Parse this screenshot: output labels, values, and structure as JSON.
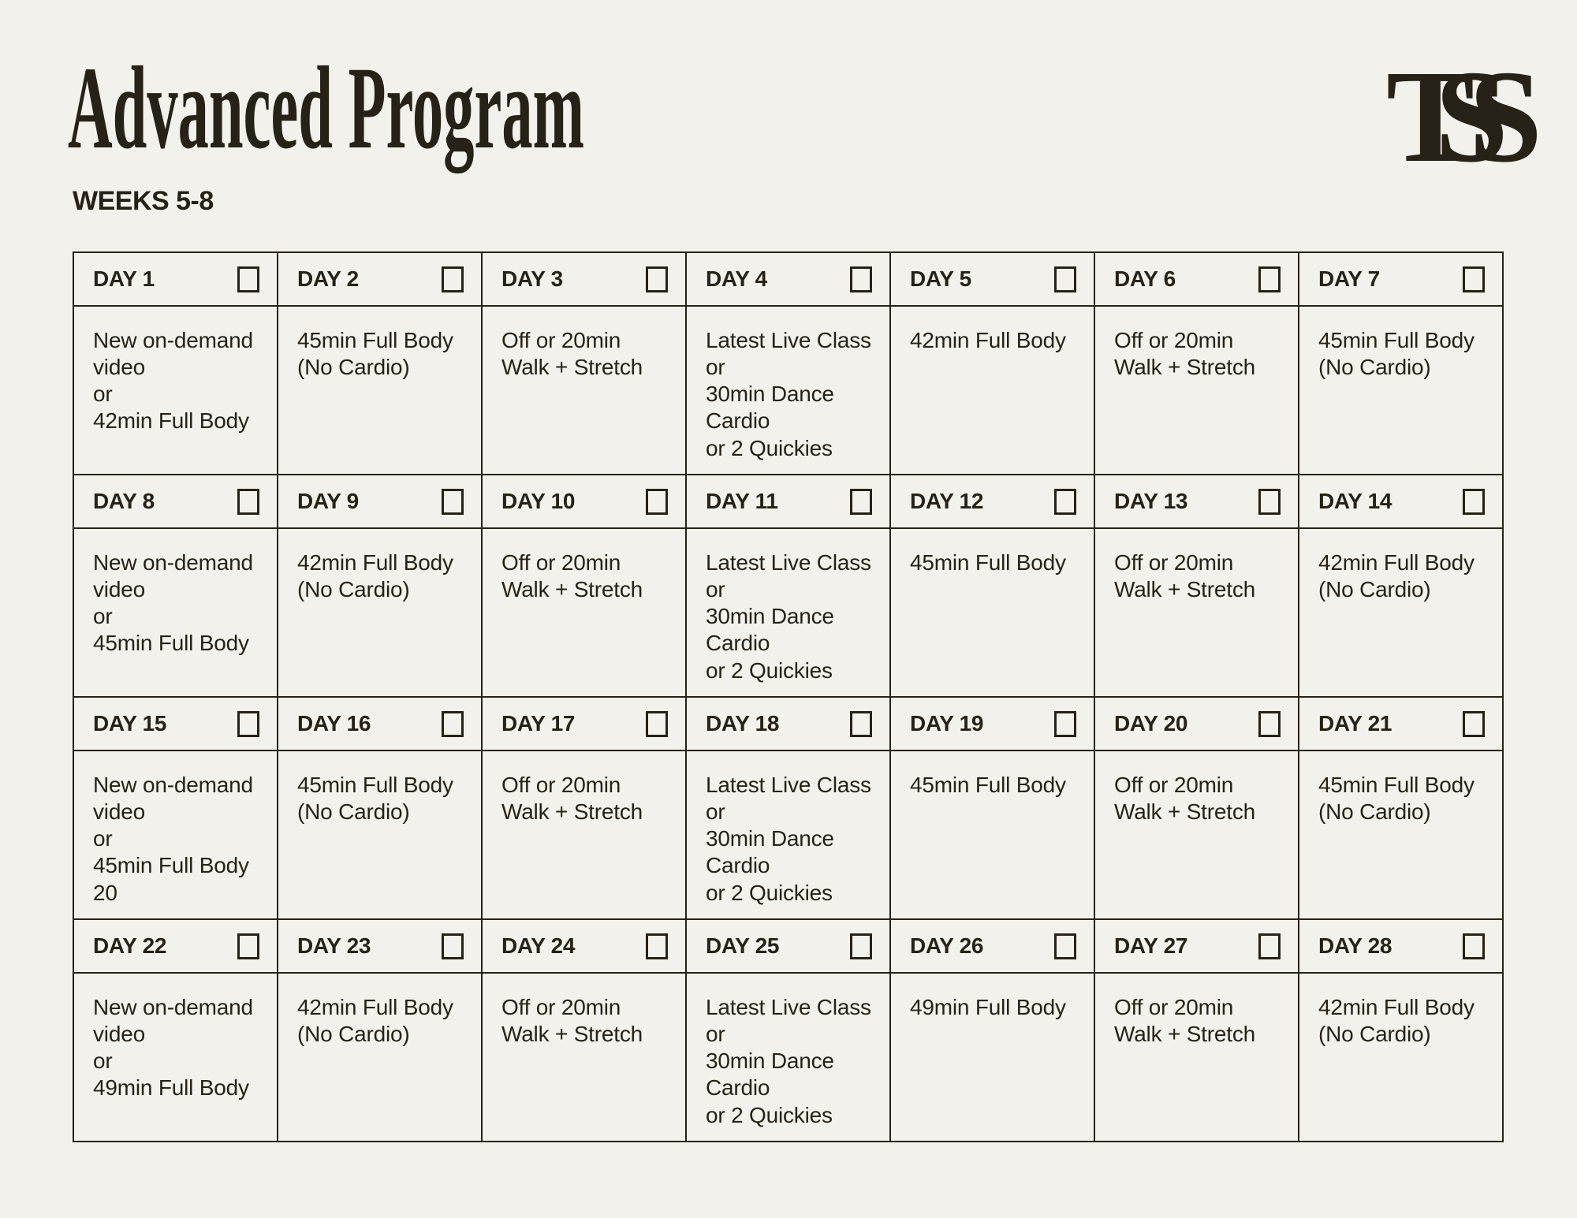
{
  "header": {
    "title": "Advanced Program",
    "subtitle": "WEEKS 5-8",
    "logo": "TSS"
  },
  "colors": {
    "background": "#F2F1EC",
    "ink": "#272217"
  },
  "calendar": {
    "columns": 7,
    "checkbox_state": "unchecked",
    "days": [
      {
        "label": "DAY 1",
        "lines": [
          "New on-demand",
          "video",
          "or",
          "42min Full Body"
        ],
        "checked": false
      },
      {
        "label": "DAY 2",
        "lines": [
          "45min Full Body",
          "(No Cardio)"
        ],
        "checked": false
      },
      {
        "label": "DAY 3",
        "lines": [
          "Off or 20min",
          "Walk + Stretch"
        ],
        "checked": false
      },
      {
        "label": "DAY 4",
        "lines": [
          "Latest Live Class",
          "or",
          "30min Dance",
          "Cardio",
          "or 2 Quickies"
        ],
        "checked": false
      },
      {
        "label": "DAY 5",
        "lines": [
          "42min Full Body"
        ],
        "checked": false
      },
      {
        "label": "DAY 6",
        "lines": [
          "Off or 20min",
          "Walk + Stretch"
        ],
        "checked": false
      },
      {
        "label": "DAY 7",
        "lines": [
          "45min Full Body",
          "(No Cardio)"
        ],
        "checked": false
      },
      {
        "label": "DAY 8",
        "lines": [
          "New on-demand",
          "video",
          "or",
          "45min Full Body"
        ],
        "checked": false
      },
      {
        "label": "DAY 9",
        "lines": [
          "42min Full Body",
          "(No Cardio)"
        ],
        "checked": false
      },
      {
        "label": "DAY 10",
        "lines": [
          "Off or 20min",
          "Walk + Stretch"
        ],
        "checked": false
      },
      {
        "label": "DAY 11",
        "lines": [
          "Latest Live Class",
          "or",
          "30min Dance",
          "Cardio",
          "or 2 Quickies"
        ],
        "checked": false
      },
      {
        "label": "DAY 12",
        "lines": [
          "45min Full Body"
        ],
        "checked": false
      },
      {
        "label": "DAY 13",
        "lines": [
          "Off or 20min",
          "Walk + Stretch"
        ],
        "checked": false
      },
      {
        "label": "DAY 14",
        "lines": [
          "42min Full Body",
          "(No Cardio)"
        ],
        "checked": false
      },
      {
        "label": "DAY 15",
        "lines": [
          "New on-demand",
          "video",
          "or",
          "45min Full Body",
          "20"
        ],
        "checked": false
      },
      {
        "label": "DAY 16",
        "lines": [
          "45min Full Body",
          "(No Cardio)"
        ],
        "checked": false
      },
      {
        "label": "DAY 17",
        "lines": [
          "Off or 20min",
          "Walk + Stretch"
        ],
        "checked": false
      },
      {
        "label": "DAY 18",
        "lines": [
          "Latest Live Class",
          "or",
          "30min Dance",
          "Cardio",
          "or 2 Quickies"
        ],
        "checked": false
      },
      {
        "label": "DAY 19",
        "lines": [
          "45min Full Body"
        ],
        "checked": false
      },
      {
        "label": "DAY 20",
        "lines": [
          "Off or 20min",
          "Walk + Stretch"
        ],
        "checked": false
      },
      {
        "label": "DAY 21",
        "lines": [
          "45min Full Body",
          "(No Cardio)"
        ],
        "checked": false
      },
      {
        "label": "DAY 22",
        "lines": [
          "New on-demand",
          "video",
          "or",
          "49min Full Body"
        ],
        "checked": false
      },
      {
        "label": "DAY 23",
        "lines": [
          "42min Full Body",
          "(No Cardio)"
        ],
        "checked": false
      },
      {
        "label": "DAY 24",
        "lines": [
          "Off or 20min",
          "Walk + Stretch"
        ],
        "checked": false
      },
      {
        "label": "DAY 25",
        "lines": [
          "Latest Live Class",
          "or",
          "30min Dance",
          "Cardio",
          "or 2 Quickies"
        ],
        "checked": false
      },
      {
        "label": "DAY 26",
        "lines": [
          "49min Full Body"
        ],
        "checked": false
      },
      {
        "label": "DAY 27",
        "lines": [
          "Off or 20min",
          "Walk + Stretch"
        ],
        "checked": false
      },
      {
        "label": "DAY 28",
        "lines": [
          "42min Full Body",
          "(No Cardio)"
        ],
        "checked": false
      }
    ]
  }
}
